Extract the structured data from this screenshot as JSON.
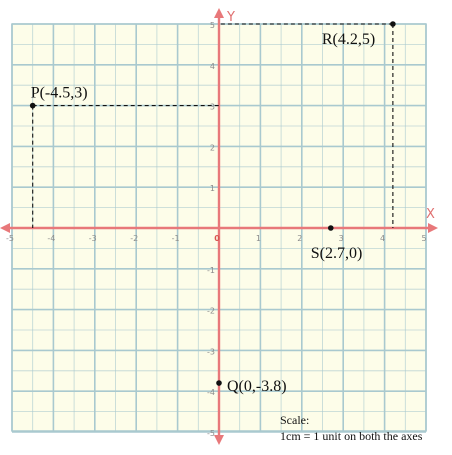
{
  "chart_data": {
    "type": "scatter",
    "xlim": [
      -5,
      5
    ],
    "ylim": [
      -5,
      5
    ],
    "grid": true,
    "x_axis_name": "X",
    "y_axis_name": "Y",
    "x_ticks": [
      "-5",
      "-4",
      "-3",
      "-2",
      "-1",
      "0",
      "1",
      "2",
      "3",
      "4",
      "5"
    ],
    "y_ticks": [
      "5",
      "4",
      "3",
      "2",
      "1",
      "-1",
      "-2",
      "-3",
      "-4",
      "-5"
    ],
    "points": [
      {
        "label": "P(-4.5,3)",
        "x": -4.5,
        "y": 3,
        "projections": true
      },
      {
        "label": "R(4.2,5)",
        "x": 4.2,
        "y": 5,
        "projections": true
      },
      {
        "label": "S(2.7,0)",
        "x": 2.7,
        "y": 0,
        "projections": false
      },
      {
        "label": "Q(0,-3.8)",
        "x": 0,
        "y": -3.8,
        "projections": false
      }
    ],
    "colors": {
      "background": "#fdfde9",
      "grid": "#a9c9cf",
      "axis": "#e8787a"
    }
  },
  "scale_note": {
    "line1": "Scale:",
    "line2": "1cm = 1 unit on both the axes"
  }
}
